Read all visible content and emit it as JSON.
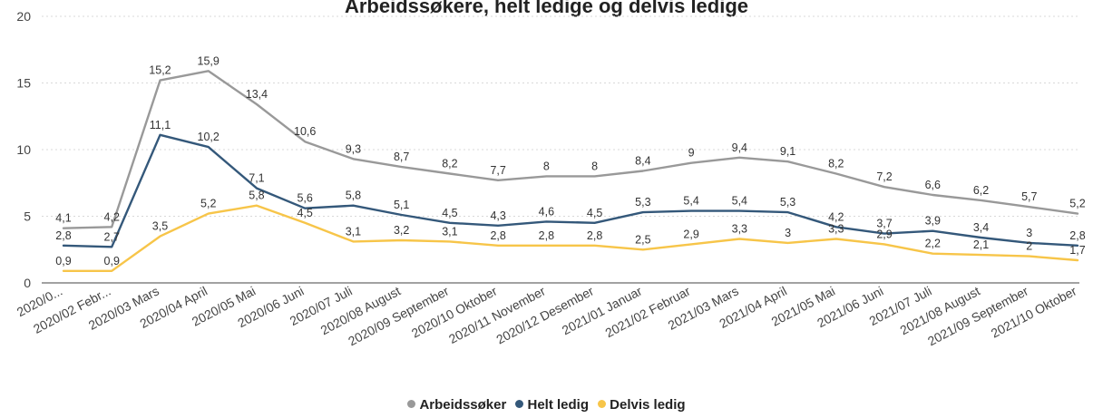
{
  "chart_data": {
    "type": "line",
    "title": "Arbeidssøkere, helt ledige og delvis ledige",
    "xlabel": "",
    "ylabel": "",
    "ylim": [
      0,
      20
    ],
    "yticks": [
      0,
      5,
      10,
      15,
      20
    ],
    "grid": true,
    "legend_position": "bottom",
    "categories": [
      "2020/0...",
      "2020/02 Febr...",
      "2020/03 Mars",
      "2020/04 April",
      "2020/05 Mai",
      "2020/06 Juni",
      "2020/07 Juli",
      "2020/08 August",
      "2020/09 September",
      "2020/10 Oktober",
      "2020/11 November",
      "2020/12 Desember",
      "2021/01 Januar",
      "2021/02 Februar",
      "2021/03 Mars",
      "2021/04 April",
      "2021/05 Mai",
      "2021/06 Juni",
      "2021/07 Juli",
      "2021/08 August",
      "2021/09 September",
      "2021/10 Oktober"
    ],
    "series": [
      {
        "name": "Arbeidssøker",
        "color": "#999999",
        "values": [
          4.1,
          4.2,
          15.2,
          15.9,
          13.4,
          10.6,
          9.3,
          8.7,
          8.2,
          7.7,
          8,
          8,
          8.4,
          9,
          9.4,
          9.1,
          8.2,
          7.2,
          6.6,
          6.2,
          5.7,
          5.2
        ],
        "labels": [
          "4,1",
          "4,2",
          "15,2",
          "15,9",
          "13,4",
          "10,6",
          "9,3",
          "8,7",
          "8,2",
          "7,7",
          "8",
          "8",
          "8,4",
          "9",
          "9,4",
          "9,1",
          "8,2",
          "7,2",
          "6,6",
          "6,2",
          "5,7",
          "5,2"
        ]
      },
      {
        "name": "Helt ledig",
        "color": "#34587a",
        "values": [
          2.8,
          2.7,
          11.1,
          10.2,
          7.1,
          5.6,
          5.8,
          5.1,
          4.5,
          4.3,
          4.6,
          4.5,
          5.3,
          5.4,
          5.4,
          5.3,
          4.2,
          3.7,
          3.9,
          3.4,
          3,
          2.8
        ],
        "labels": [
          "2,8",
          "2,7",
          "11,1",
          "10,2",
          "7,1",
          "5,6",
          "5,8",
          "5,1",
          "4,5",
          "4,3",
          "4,6",
          "4,5",
          "5,3",
          "5,4",
          "5,4",
          "5,3",
          "4,2",
          "3,7",
          "3,9",
          "3,4",
          "3",
          "2,8"
        ]
      },
      {
        "name": "Delvis ledig",
        "color": "#f7c549",
        "values": [
          0.9,
          0.9,
          3.5,
          5.2,
          5.8,
          4.5,
          3.1,
          3.2,
          3.1,
          2.8,
          2.8,
          2.8,
          2.5,
          2.9,
          3.3,
          3,
          3.3,
          2.9,
          2.2,
          2.1,
          2,
          1.7
        ],
        "labels": [
          "0,9",
          "0,9",
          "3,5",
          "5,2",
          "5,8",
          "4,5",
          "3,1",
          "3,2",
          "3,1",
          "2,8",
          "2,8",
          "2,8",
          "2,5",
          "2,9",
          "3,3",
          "3",
          "3,3",
          "2,9",
          "2,2",
          "2,1",
          "2",
          "1,7"
        ]
      }
    ]
  }
}
